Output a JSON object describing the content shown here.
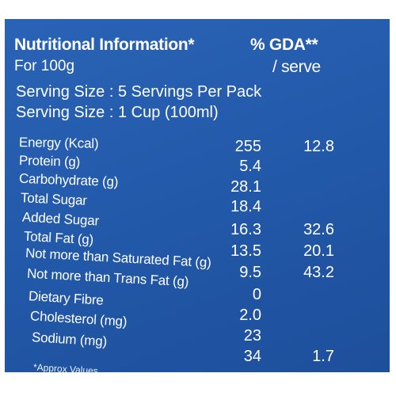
{
  "header": {
    "title": "Nutritional Information*",
    "per": "For 100g",
    "gda_title": "% GDA**",
    "gda_sub": "/ serve"
  },
  "serving": {
    "line1": "Serving Size : 5 Servings Per Pack",
    "line2": "Serving Size : 1 Cup (100ml)"
  },
  "rows": [
    {
      "label": "Energy (Kcal)",
      "value": "255",
      "gda": "12.8"
    },
    {
      "label": "Protein (g)",
      "value": "5.4",
      "gda": ""
    },
    {
      "label": "Carbohydrate (g)",
      "value": "28.1",
      "gda": ""
    },
    {
      "label": "Total Sugar",
      "value": "18.4",
      "gda": ""
    },
    {
      "label": "Added Sugar",
      "value": "16.3",
      "gda": "32.6"
    },
    {
      "label": "Total Fat (g)",
      "value": "13.5",
      "gda": "20.1"
    },
    {
      "label": "Not more than Saturated Fat (g)",
      "value": "9.5",
      "gda": "43.2"
    },
    {
      "label": "Not more than Trans Fat (g)",
      "value": "0",
      "gda": ""
    },
    {
      "label": "Dietary Fibre",
      "value": "2.0",
      "gda": ""
    },
    {
      "label": "Cholesterol (mg)",
      "value": "23",
      "gda": ""
    },
    {
      "label": "Sodium (mg)",
      "value": "34",
      "gda": "1.7"
    }
  ],
  "footnote": "*Approx Values"
}
